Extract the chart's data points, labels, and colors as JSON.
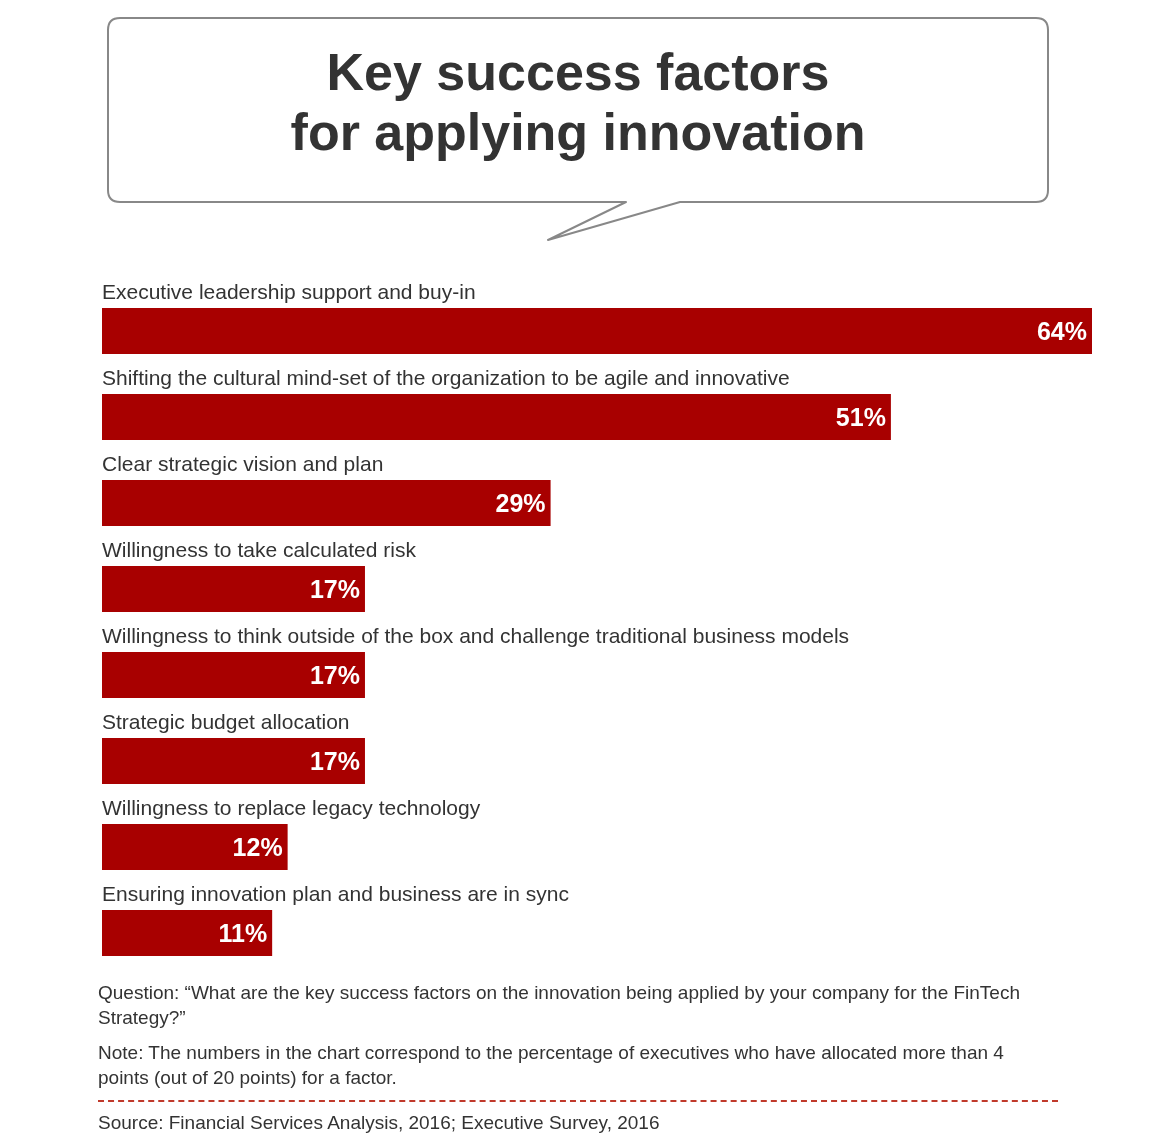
{
  "chart_data": {
    "type": "bar",
    "orientation": "horizontal",
    "title": "Key success factors\nfor applying innovation",
    "categories": [
      "Executive leadership support and buy-in",
      "Shifting the cultural mind-set of the organization to be agile and innovative",
      "Clear strategic vision and plan",
      "Willingness to take calculated risk",
      "Willingness to think outside of the box and challenge traditional business models",
      "Strategic budget allocation",
      "Willingness to replace legacy technology",
      "Ensuring innovation plan and business are in sync"
    ],
    "values": [
      64,
      51,
      29,
      17,
      17,
      17,
      12,
      11
    ],
    "value_labels": [
      "64%",
      "51%",
      "29%",
      "17%",
      "17%",
      "17%",
      "12%",
      "11%"
    ],
    "color": "#a80000",
    "annotations": [
      "Question: “What are the key success factors on the innovation being applied by your company for the FinTech Strategy?”",
      "Note: The numbers in the chart correspond to the percentage of executives who have allocated more than 4 points (out of 20 points) for a factor.",
      "Source: Financial Services Analysis, 2016; Executive Survey, 2016"
    ]
  }
}
